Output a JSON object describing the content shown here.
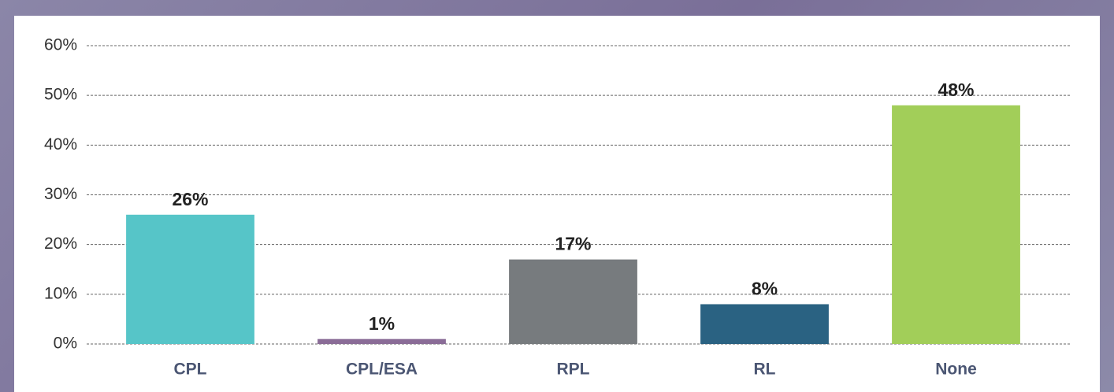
{
  "chart_data": {
    "type": "bar",
    "categories": [
      "CPL",
      "CPL/ESA",
      "RPL",
      "RL",
      "None"
    ],
    "values": [
      26,
      1,
      17,
      8,
      48
    ],
    "value_labels": [
      "26%",
      "1%",
      "17%",
      "8%",
      "48%"
    ],
    "colors": [
      "#56c5c8",
      "#8a6c97",
      "#777b7e",
      "#2a6282",
      "#a2ce59"
    ],
    "ylim": [
      0,
      60
    ],
    "yticks": [
      {
        "value": 0,
        "label": "0%"
      },
      {
        "value": 10,
        "label": "10%"
      },
      {
        "value": 20,
        "label": "20%"
      },
      {
        "value": 30,
        "label": "30%"
      },
      {
        "value": 40,
        "label": "40%"
      },
      {
        "value": 50,
        "label": "50%"
      },
      {
        "value": 60,
        "label": "60%"
      }
    ],
    "grid": true
  }
}
